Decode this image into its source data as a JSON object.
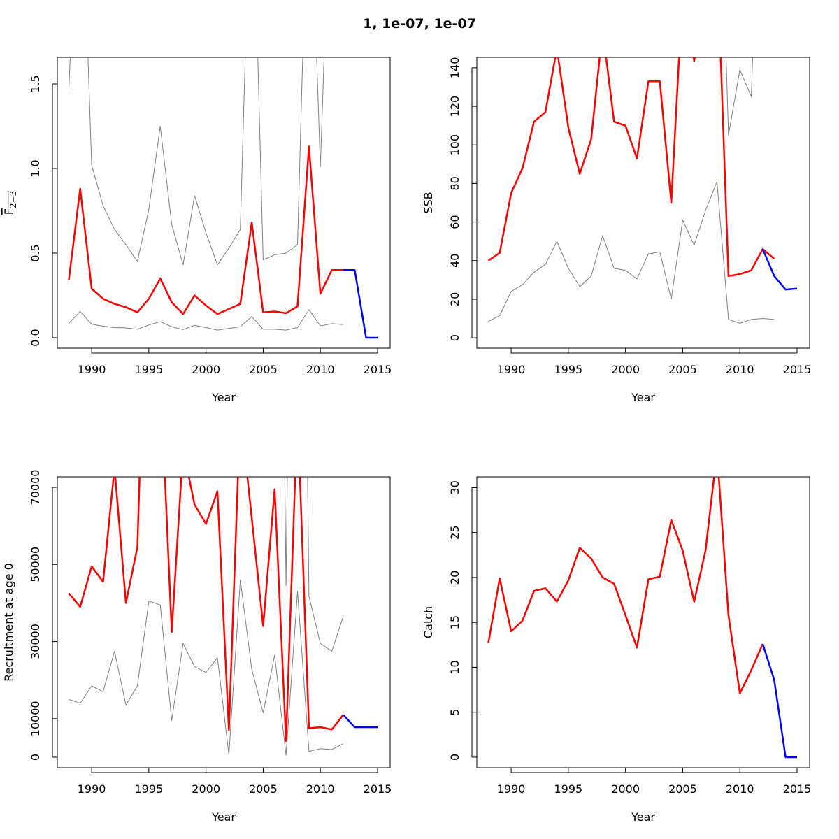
{
  "chart_data": {
    "title": "1, 1e-07, 1e-07",
    "colors": {
      "estimate": "#ff0000",
      "forecast": "#0000ff",
      "ci": "#808080"
    },
    "panels": [
      {
        "type": "line",
        "ylabel": "F",
        "ylabel_sub": "2−3",
        "xlabel": "Year",
        "xlim": [
          1987,
          2016.1
        ],
        "ylim": [
          -0.062,
          1.657
        ],
        "xticks": [
          1990,
          1995,
          2000,
          2005,
          2010,
          2015
        ],
        "yticks": [
          0.0,
          0.5,
          1.0,
          1.5
        ],
        "ytick_labels": [
          "0.0",
          "0.5",
          "1.0",
          "1.5"
        ],
        "years": [
          1988,
          1989,
          1990,
          1991,
          1992,
          1993,
          1994,
          1995,
          1996,
          1997,
          1998,
          1999,
          2000,
          2001,
          2002,
          2003,
          2004,
          2005,
          2006,
          2007,
          2008,
          2009,
          2010,
          2011,
          2012
        ],
        "estimate": [
          0.34,
          0.88,
          0.29,
          0.23,
          0.2,
          0.18,
          0.15,
          0.23,
          0.35,
          0.21,
          0.14,
          0.25,
          0.19,
          0.14,
          0.17,
          0.2,
          0.68,
          0.15,
          0.155,
          0.145,
          0.185,
          1.13,
          0.26,
          0.4,
          0.4
        ],
        "upper": [
          1.46,
          3.0,
          1.02,
          0.78,
          0.64,
          0.55,
          0.45,
          0.76,
          1.25,
          0.67,
          0.43,
          0.84,
          0.62,
          0.43,
          0.53,
          0.64,
          3.0,
          0.46,
          0.49,
          0.5,
          0.55,
          3.0,
          1.01,
          3.0,
          3.0
        ],
        "lower": [
          0.085,
          0.155,
          0.08,
          0.068,
          0.06,
          0.058,
          0.05,
          0.075,
          0.095,
          0.065,
          0.048,
          0.073,
          0.06,
          0.045,
          0.055,
          0.065,
          0.125,
          0.05,
          0.05,
          0.045,
          0.06,
          0.165,
          0.07,
          0.083,
          0.078
        ],
        "forecast_years": [
          2012,
          2013,
          2014,
          2015
        ],
        "forecast": [
          0.4,
          0.4,
          0.0,
          0.0
        ]
      },
      {
        "type": "line",
        "ylabel": "SSB",
        "xlabel": "Year",
        "xlim": [
          1987,
          2016.1
        ],
        "ylim": [
          -5.4,
          145.4
        ],
        "xticks": [
          1990,
          1995,
          2000,
          2005,
          2010,
          2015
        ],
        "yticks": [
          0,
          20,
          40,
          60,
          80,
          100,
          120,
          140
        ],
        "ytick_labels": [
          "0",
          "20",
          "40",
          "60",
          "80",
          "100",
          "120",
          "140"
        ],
        "years": [
          1988,
          1989,
          1990,
          1991,
          1992,
          1993,
          1994,
          1995,
          1996,
          1997,
          1998,
          1999,
          2000,
          2001,
          2002,
          2003,
          2004,
          2005,
          2006,
          2007,
          2008,
          2009,
          2010,
          2011,
          2012,
          2013
        ],
        "estimate": [
          40,
          44,
          75,
          88,
          112,
          117,
          150,
          109,
          85,
          103,
          160,
          112,
          110,
          93,
          133,
          133,
          70,
          180,
          143.5,
          180,
          200,
          32,
          33,
          35,
          46,
          41
        ],
        "upper": [
          300,
          300,
          300,
          300,
          300,
          300,
          300,
          300,
          300,
          300,
          300,
          300,
          300,
          300,
          300,
          300,
          300,
          300,
          300,
          300,
          300,
          105,
          139,
          125,
          300,
          300
        ],
        "lower": [
          8.5,
          11.5,
          24,
          27.5,
          34,
          38,
          50,
          36,
          26.5,
          32,
          53,
          36,
          35,
          30.5,
          43.5,
          44.5,
          20,
          61,
          48,
          66,
          81,
          9.5,
          7.5,
          9.5,
          10,
          9.5
        ],
        "forecast_years": [
          2012,
          2013,
          2014,
          2015
        ],
        "forecast": [
          46,
          32,
          25,
          25.5
        ]
      },
      {
        "type": "line",
        "ylabel": "Recruitment at age 0",
        "xlabel": "Year",
        "xlim": [
          1987,
          2016.1
        ],
        "ylim": [
          -2720,
          72720
        ],
        "xticks": [
          1990,
          1995,
          2000,
          2005,
          2010,
          2015
        ],
        "yticks": [
          0,
          10000,
          30000,
          50000,
          70000
        ],
        "ytick_labels": [
          "0",
          "10000",
          "30000",
          "50000",
          "70000"
        ],
        "years": [
          1988,
          1989,
          1990,
          1991,
          1992,
          1993,
          1994,
          1995,
          1996,
          1997,
          1998,
          1999,
          2000,
          2001,
          2002,
          2003,
          2004,
          2005,
          2006,
          2007,
          2008,
          2009,
          2010,
          2011,
          2012
        ],
        "estimate": [
          42500,
          39000,
          49500,
          45500,
          75000,
          40000,
          54500,
          150000,
          100000,
          32500,
          80000,
          65500,
          60500,
          69000,
          7000,
          90000,
          62000,
          34000,
          69500,
          4200,
          90000,
          7500,
          7800,
          7200,
          11000
        ],
        "upper": [
          300000,
          300000,
          300000,
          300000,
          300000,
          300000,
          300000,
          300000,
          300000,
          300000,
          300000,
          300000,
          300000,
          300000,
          300000,
          300000,
          300000,
          300000,
          300000,
          44500,
          300000,
          41700,
          29500,
          27500,
          36500
        ],
        "lower": [
          15000,
          14000,
          18500,
          17000,
          27500,
          13500,
          18500,
          40500,
          39500,
          9500,
          29500,
          23500,
          22000,
          25800,
          600,
          46000,
          22800,
          11500,
          26500,
          500,
          43000,
          1500,
          2200,
          2000,
          3500
        ],
        "forecast_years": [
          2012,
          2013,
          2014,
          2015
        ],
        "forecast": [
          11000,
          7800,
          7800,
          7800
        ]
      },
      {
        "type": "line",
        "ylabel": "Catch",
        "xlabel": "Year",
        "xlim": [
          1987,
          2016.1
        ],
        "ylim": [
          -1.17,
          31.2
        ],
        "xticks": [
          1990,
          1995,
          2000,
          2005,
          2010,
          2015
        ],
        "yticks": [
          0,
          5,
          10,
          15,
          20,
          25,
          30
        ],
        "ytick_labels": [
          "0",
          "5",
          "10",
          "15",
          "20",
          "25",
          "30"
        ],
        "years": [
          1988,
          1989,
          1990,
          1991,
          1992,
          1993,
          1994,
          1995,
          1996,
          1997,
          1998,
          1999,
          2000,
          2001,
          2002,
          2003,
          2004,
          2005,
          2006,
          2007,
          2008,
          2009,
          2010,
          2011,
          2012
        ],
        "estimate": [
          12.7,
          19.9,
          14.0,
          15.2,
          18.5,
          18.8,
          17.3,
          19.7,
          23.3,
          22.1,
          20.0,
          19.3,
          15.8,
          12.2,
          19.8,
          20.1,
          26.4,
          23.0,
          17.3,
          23.0,
          34,
          15.8,
          7.1,
          9.7,
          12.6
        ],
        "upper": [],
        "lower": [],
        "forecast_years": [
          2012,
          2013,
          2014,
          2015
        ],
        "forecast": [
          12.6,
          8.6,
          0,
          0
        ]
      }
    ]
  }
}
